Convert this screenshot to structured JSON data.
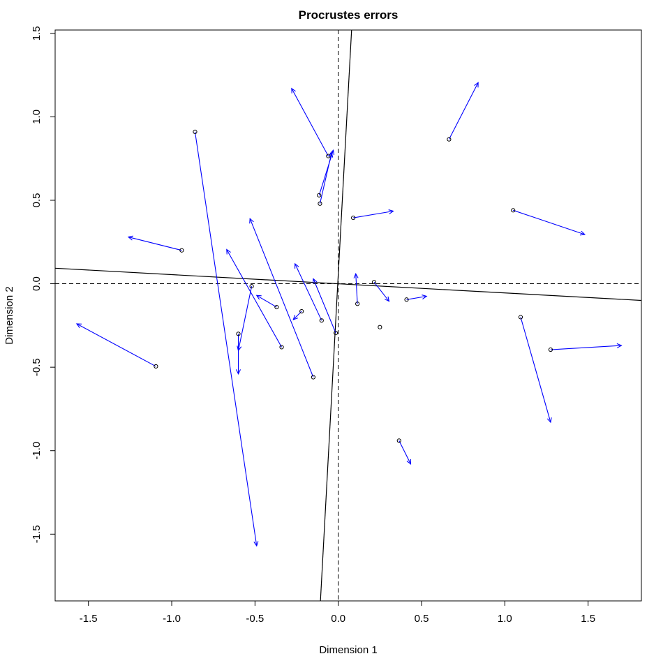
{
  "chart_data": {
    "type": "scatter",
    "title": "Procrustes errors",
    "xlabel": "Dimension 1",
    "ylabel": "Dimension 2",
    "xlim": [
      -1.7,
      1.82
    ],
    "ylim": [
      -1.9,
      1.52
    ],
    "xticks": [
      {
        "value": -1.5,
        "label": "-1.5"
      },
      {
        "value": -1.0,
        "label": "-1.0"
      },
      {
        "value": -0.5,
        "label": "-0.5"
      },
      {
        "value": 0.0,
        "label": "0.0"
      },
      {
        "value": 0.5,
        "label": "0.5"
      },
      {
        "value": 1.0,
        "label": "1.0"
      },
      {
        "value": 1.5,
        "label": "1.5"
      }
    ],
    "yticks": [
      {
        "value": -1.5,
        "label": "-1.5"
      },
      {
        "value": -1.0,
        "label": "-1.0"
      },
      {
        "value": -0.5,
        "label": "-0.5"
      },
      {
        "value": 0.0,
        "label": "0.0"
      },
      {
        "value": 0.5,
        "label": "0.5"
      },
      {
        "value": 1.0,
        "label": "1.0"
      },
      {
        "value": 1.5,
        "label": "1.5"
      }
    ],
    "grid": false,
    "reference_lines": [
      {
        "orientation": "horizontal",
        "value": 0,
        "style": "dashed"
      },
      {
        "orientation": "vertical",
        "value": 0,
        "style": "dashed"
      }
    ],
    "rotation_axes": [
      {
        "from": [
          -1.7,
          0.093
        ],
        "to": [
          1.82,
          -0.1
        ]
      },
      {
        "from": [
          -0.107,
          -1.9
        ],
        "to": [
          0.08,
          1.52
        ]
      }
    ],
    "colors": {
      "arrow": "#0000ff",
      "point": "#000000",
      "axes": "#000000"
    },
    "errors": [
      {
        "from": [
          -0.86,
          0.91
        ],
        "to": [
          -0.49,
          -1.57
        ]
      },
      {
        "from": [
          -0.06,
          0.765
        ],
        "to": [
          -0.28,
          1.17
        ]
      },
      {
        "from": [
          0.665,
          0.865
        ],
        "to": [
          0.84,
          1.205
        ]
      },
      {
        "from": [
          -0.115,
          0.53
        ],
        "to": [
          -0.03,
          0.8
        ]
      },
      {
        "from": [
          -0.11,
          0.48
        ],
        "to": [
          -0.04,
          0.785
        ]
      },
      {
        "from": [
          0.09,
          0.395
        ],
        "to": [
          0.33,
          0.435
        ]
      },
      {
        "from": [
          1.05,
          0.44
        ],
        "to": [
          1.48,
          0.295
        ]
      },
      {
        "from": [
          -0.94,
          0.2
        ],
        "to": [
          -1.26,
          0.28
        ]
      },
      {
        "from": [
          -0.52,
          -0.015
        ],
        "to": [
          -0.6,
          -0.4
        ]
      },
      {
        "from": [
          -0.37,
          -0.14
        ],
        "to": [
          -0.49,
          -0.07
        ]
      },
      {
        "from": [
          -0.34,
          -0.38
        ],
        "to": [
          -0.67,
          0.205
        ]
      },
      {
        "from": [
          -0.15,
          -0.56
        ],
        "to": [
          -0.53,
          0.39
        ]
      },
      {
        "from": [
          -0.22,
          -0.165
        ],
        "to": [
          -0.27,
          -0.215
        ]
      },
      {
        "from": [
          -0.1,
          -0.22
        ],
        "to": [
          -0.26,
          0.12
        ]
      },
      {
        "from": [
          -0.015,
          -0.295
        ],
        "to": [
          -0.15,
          0.03
        ]
      },
      {
        "from": [
          0.115,
          -0.12
        ],
        "to": [
          0.105,
          0.06
        ]
      },
      {
        "from": [
          0.215,
          0.01
        ],
        "to": [
          0.305,
          -0.105
        ]
      },
      {
        "from": [
          0.41,
          -0.095
        ],
        "to": [
          0.53,
          -0.075
        ]
      },
      {
        "from": [
          0.25,
          -0.26
        ],
        "to": [
          0.25,
          -0.26
        ]
      },
      {
        "from": [
          -0.6,
          -0.3
        ],
        "to": [
          -0.6,
          -0.54
        ]
      },
      {
        "from": [
          -1.095,
          -0.495
        ],
        "to": [
          -1.57,
          -0.24
        ]
      },
      {
        "from": [
          1.095,
          -0.2
        ],
        "to": [
          1.275,
          -0.83
        ]
      },
      {
        "from": [
          1.275,
          -0.395
        ],
        "to": [
          1.7,
          -0.37
        ]
      },
      {
        "from": [
          0.365,
          -0.94
        ],
        "to": [
          0.435,
          -1.08
        ]
      }
    ]
  }
}
